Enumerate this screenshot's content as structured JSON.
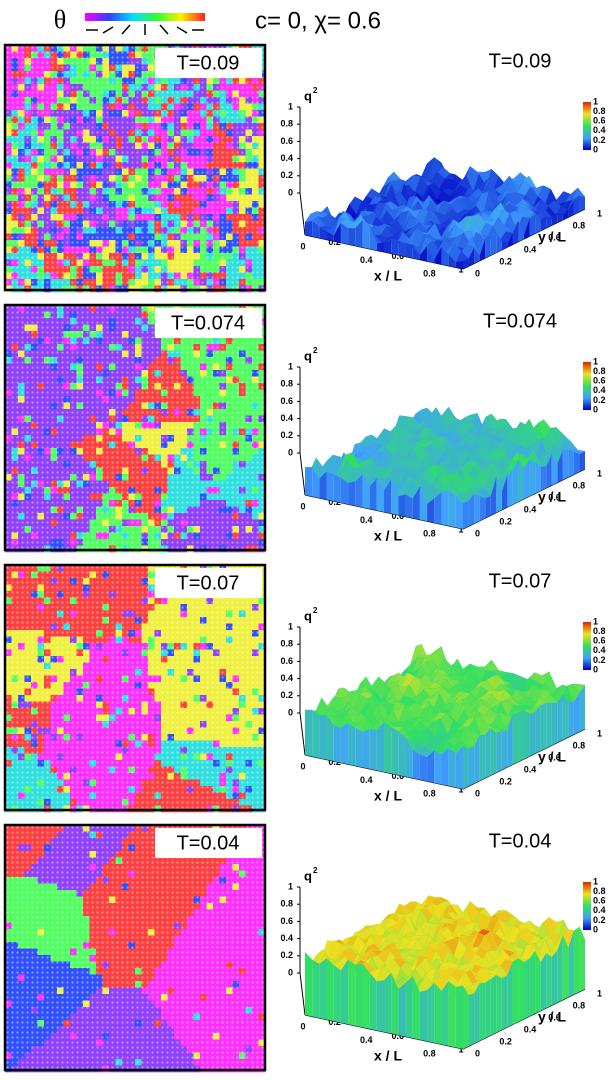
{
  "header": {
    "symbol": "θ",
    "title": "c= 0, χ= 0.6"
  },
  "panels": [
    {
      "snapshot_label": "T=0.09",
      "surface_title": "T=0.09"
    },
    {
      "snapshot_label": "T=0.074",
      "surface_title": "T=0.074"
    },
    {
      "snapshot_label": "T=0.07",
      "surface_title": "T=0.07"
    },
    {
      "snapshot_label": "T=0.04",
      "surface_title": "T=0.04"
    }
  ],
  "surface_axes": {
    "z_label": "q",
    "z_label_exponent": "2",
    "z_ticks": [
      "0",
      "0.2",
      "0.4",
      "0.6",
      "0.8",
      "1"
    ],
    "x_label": "x / L",
    "y_label": "y / L",
    "x_ticks": [
      "0",
      "0.2",
      "0.4",
      "0.6",
      "0.8",
      "1"
    ],
    "y_ticks": [
      "0",
      "0.2",
      "0.4",
      "0.6",
      "0.8",
      "1"
    ],
    "colorbar_ticks": [
      "0",
      "0.2",
      "0.4",
      "0.6",
      "0.8",
      "1"
    ]
  }
}
